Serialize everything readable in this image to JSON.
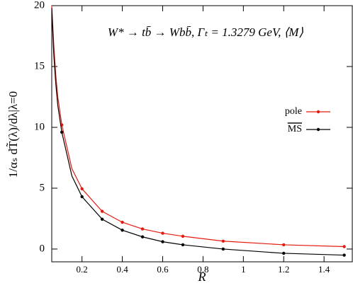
{
  "chart_data": {
    "type": "line",
    "annotation": "W* → tb̄ → Wbb̄,  Γₜ = 1.3279 GeV,  ⟨M⟩",
    "x_label": "R",
    "y_label": "1/αₛ dT̃(λ)/dλ|λ=0",
    "xlim": [
      0.05,
      1.54
    ],
    "ylim": [
      -1.05,
      20
    ],
    "xticks": [
      0.2,
      0.4,
      0.6,
      0.8,
      1,
      1.2,
      1.4
    ],
    "yticks": [
      0,
      5,
      10,
      15,
      20
    ],
    "legend": "right",
    "series": [
      {
        "name": "pole",
        "color": "#e8190f",
        "x": [
          0.1,
          0.2,
          0.3,
          0.4,
          0.5,
          0.6,
          0.7,
          0.9,
          1.2,
          1.5
        ],
        "values": [
          10.2,
          4.95,
          3.1,
          2.2,
          1.65,
          1.3,
          1.05,
          0.65,
          0.35,
          0.2
        ],
        "curve_x": [
          0.05,
          0.06,
          0.07,
          0.08,
          0.1,
          0.15,
          0.2,
          0.3,
          0.4,
          0.5,
          0.6,
          0.7,
          0.9,
          1.2,
          1.5
        ],
        "curve_values": [
          20,
          16.8,
          14.3,
          12.5,
          10.2,
          6.6,
          4.95,
          3.1,
          2.2,
          1.65,
          1.3,
          1.05,
          0.65,
          0.35,
          0.2
        ]
      },
      {
        "name": "MS",
        "color": "#000000",
        "x": [
          0.1,
          0.2,
          0.3,
          0.4,
          0.5,
          0.6,
          0.7,
          0.9,
          1.2,
          1.5
        ],
        "values": [
          9.6,
          4.3,
          2.45,
          1.55,
          1.0,
          0.6,
          0.35,
          0.0,
          -0.35,
          -0.5
        ],
        "curve_x": [
          0.05,
          0.06,
          0.07,
          0.08,
          0.1,
          0.15,
          0.2,
          0.3,
          0.4,
          0.5,
          0.6,
          0.7,
          0.9,
          1.2,
          1.5
        ],
        "curve_values": [
          19.8,
          16,
          13.6,
          11.8,
          9.6,
          6.0,
          4.3,
          2.45,
          1.55,
          1.0,
          0.6,
          0.35,
          0.0,
          -0.35,
          -0.5
        ]
      }
    ]
  }
}
